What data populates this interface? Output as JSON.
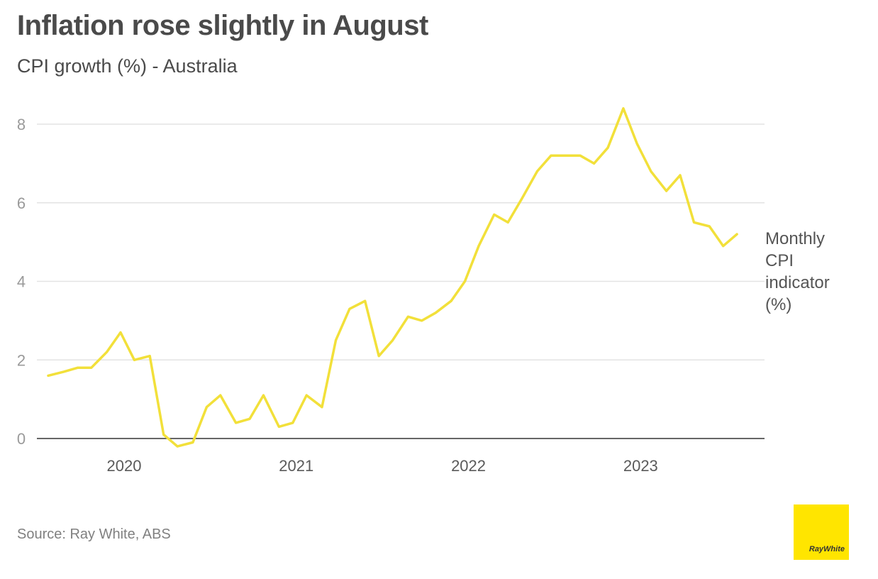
{
  "colors": {
    "line": "#f2e03a",
    "grid": "#e3e3e3",
    "axis": "#333333",
    "logo": "#ffe500"
  },
  "logo": {
    "text": "RayWhite"
  },
  "source": "Source: Ray White, ABS",
  "chart_data": {
    "type": "line",
    "title": "Inflation rose slightly in August",
    "subtitle": "CPI growth (%) - Australia",
    "ylim": [
      -0.3,
      8.6
    ],
    "yticks": [
      0,
      2,
      4,
      6,
      8
    ],
    "xlim": [
      2019.58,
      2023.67
    ],
    "xticks": [
      {
        "x": 2020.0,
        "label": "2020"
      },
      {
        "x": 2021.0,
        "label": "2021"
      },
      {
        "x": 2022.0,
        "label": "2022"
      },
      {
        "x": 2023.0,
        "label": "2023"
      }
    ],
    "grid": true,
    "series": [
      {
        "name": "Monthly CPI indicator (%)",
        "label_lines": [
          "Monthly",
          "CPI",
          "indicator",
          "(%)"
        ],
        "x": [
          2019.58,
          2019.67,
          2019.75,
          2019.83,
          2019.92,
          2020.0,
          2020.08,
          2020.17,
          2020.25,
          2020.33,
          2020.42,
          2020.5,
          2020.58,
          2020.67,
          2020.75,
          2020.83,
          2020.92,
          2021.0,
          2021.08,
          2021.17,
          2021.25,
          2021.33,
          2021.42,
          2021.5,
          2021.58,
          2021.67,
          2021.75,
          2021.83,
          2021.92,
          2022.0,
          2022.08,
          2022.17,
          2022.25,
          2022.33,
          2022.42,
          2022.5,
          2022.58,
          2022.67,
          2022.75,
          2022.83,
          2022.92,
          2023.0,
          2023.08,
          2023.17,
          2023.25,
          2023.33,
          2023.42,
          2023.5,
          2023.58
        ],
        "values": [
          1.6,
          1.7,
          1.8,
          1.8,
          2.2,
          2.7,
          2.0,
          2.1,
          0.1,
          -0.2,
          -0.1,
          0.8,
          1.1,
          0.4,
          0.5,
          1.1,
          0.3,
          0.4,
          1.1,
          0.8,
          2.5,
          3.3,
          3.5,
          2.1,
          2.5,
          3.1,
          3.0,
          3.2,
          3.5,
          4.0,
          4.9,
          5.7,
          5.5,
          6.1,
          6.8,
          7.2,
          7.2,
          7.2,
          7.0,
          7.4,
          8.4,
          7.5,
          6.8,
          6.3,
          6.7,
          5.5,
          5.4,
          4.9,
          5.2
        ]
      }
    ]
  }
}
